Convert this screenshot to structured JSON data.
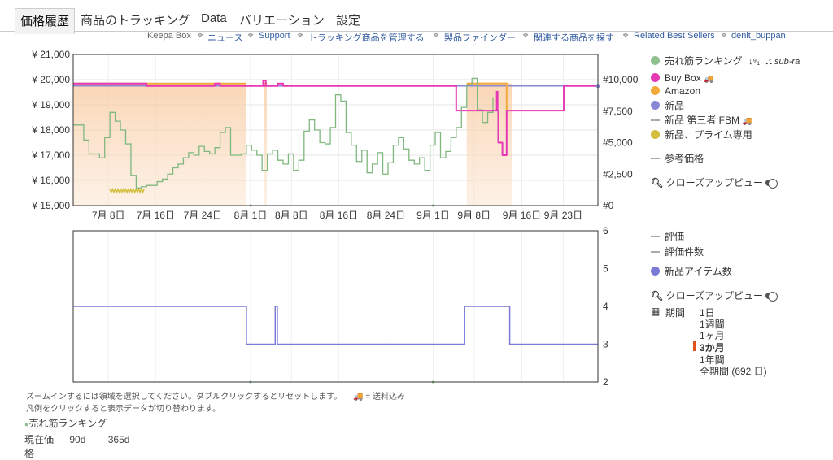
{
  "tabs": [
    {
      "label": "価格履歴",
      "active": true
    },
    {
      "label": "商品のトラッキング"
    },
    {
      "label": "Data"
    },
    {
      "label": "バリエーション"
    },
    {
      "label": "設定"
    }
  ],
  "subnav": {
    "brand": "Keepa Box",
    "links": [
      "ニュース",
      "Support",
      "トラッキング商品を管理する",
      "製品ファインダー",
      "関連する商品を探す",
      "Related Best Sellers",
      "denit_buppan"
    ]
  },
  "chart_data": [
    {
      "type": "line",
      "title": "",
      "x_ticks": [
        "7月 8日",
        "7月 16日",
        "7月 24日",
        "8月 1日",
        "8月 8日",
        "8月 16日",
        "8月 24日",
        "9月 1日",
        "9月 8日",
        "9月 16日",
        "9月 23日"
      ],
      "y_left_ticks": [
        "¥ 21,000",
        "¥ 20,000",
        "¥ 19,000",
        "¥ 18,000",
        "¥ 17,000",
        "¥ 16,000",
        "¥ 15,000"
      ],
      "y_right_ticks": [
        "#10,000",
        "#7,500",
        "#5,000",
        "#2,500",
        "#0"
      ],
      "ylim_left": [
        15000,
        21000
      ],
      "ylim_right": [
        0,
        12000
      ],
      "series": [
        {
          "name": "売れ筋ランキング",
          "axis": "right",
          "color": "#7fb87f",
          "points": [
            [
              1,
              6400
            ],
            [
              2,
              5200
            ],
            [
              3,
              4100
            ],
            [
              4,
              4100
            ],
            [
              5,
              3800
            ],
            [
              6,
              5400
            ],
            [
              7,
              7400
            ],
            [
              8,
              6700
            ],
            [
              9,
              6000
            ],
            [
              10,
              4900
            ],
            [
              11,
              2400
            ],
            [
              12,
              1400
            ],
            [
              13,
              1500
            ],
            [
              14,
              1600
            ],
            [
              15,
              1600
            ],
            [
              16,
              1900
            ],
            [
              17,
              2100
            ],
            [
              18,
              2500
            ],
            [
              19,
              3000
            ],
            [
              20,
              3300
            ],
            [
              21,
              3800
            ],
            [
              22,
              4200
            ],
            [
              23,
              4000
            ],
            [
              24,
              4700
            ],
            [
              25,
              4300
            ],
            [
              26,
              4100
            ],
            [
              27,
              4600
            ],
            [
              28,
              5800
            ],
            [
              29,
              6200
            ],
            [
              30,
              4000
            ],
            [
              31,
              4000
            ],
            [
              32,
              4100
            ],
            [
              33,
              4800
            ],
            [
              34,
              4400
            ],
            [
              35,
              4000
            ],
            [
              36,
              2800
            ],
            [
              37,
              4100
            ],
            [
              38,
              4400
            ],
            [
              39,
              3600
            ],
            [
              40,
              3300
            ],
            [
              41,
              4100
            ],
            [
              42,
              2800
            ],
            [
              43,
              3600
            ],
            [
              44,
              5900
            ],
            [
              45,
              6800
            ],
            [
              46,
              6000
            ],
            [
              47,
              5000
            ],
            [
              48,
              4900
            ],
            [
              49,
              6200
            ],
            [
              50,
              8800
            ],
            [
              51,
              8300
            ],
            [
              52,
              5800
            ],
            [
              53,
              4800
            ],
            [
              54,
              3500
            ],
            [
              55,
              4400
            ],
            [
              56,
              2600
            ],
            [
              57,
              3300
            ],
            [
              58,
              4200
            ],
            [
              59,
              2500
            ],
            [
              60,
              3400
            ],
            [
              61,
              4800
            ],
            [
              62,
              5400
            ],
            [
              63,
              4500
            ],
            [
              64,
              3600
            ],
            [
              65,
              3300
            ],
            [
              66,
              3800
            ],
            [
              67,
              2800
            ],
            [
              68,
              4800
            ],
            [
              69,
              5800
            ],
            [
              70,
              3800
            ],
            [
              71,
              4300
            ],
            [
              72,
              5400
            ],
            [
              73,
              6200
            ],
            [
              74,
              7800
            ],
            [
              75,
              9600
            ],
            [
              76,
              10100
            ],
            [
              77,
              7600
            ],
            [
              78,
              6600
            ],
            [
              79,
              7400
            ],
            [
              80,
              8600
            ]
          ]
        },
        {
          "name": "Buy Box",
          "axis": "left",
          "color": "#e637b4",
          "points": [
            [
              0,
              19850
            ],
            [
              14,
              19850
            ],
            [
              14,
              19750
            ],
            [
              27,
              19750
            ],
            [
              27,
              19850
            ],
            [
              28,
              19850
            ],
            [
              28,
              19750
            ],
            [
              39,
              19750
            ],
            [
              39,
              19850
            ],
            [
              40,
              19850
            ],
            [
              40,
              19750
            ],
            [
              73,
              19750
            ],
            [
              73,
              18770
            ],
            [
              81,
              18770
            ],
            [
              81,
              17500
            ],
            [
              81.8,
              17500
            ],
            [
              81.8,
              17000
            ],
            [
              82.6,
              17000
            ],
            [
              82.6,
              18770
            ],
            [
              93.5,
              18770
            ],
            [
              93.5,
              19750
            ],
            [
              100,
              19750
            ]
          ]
        },
        {
          "name": "Amazon",
          "axis": "left",
          "color": "#f3a93a",
          "points": [
            [
              0,
              19850
            ],
            [
              33,
              19850
            ]
          ]
        },
        {
          "name": "新品",
          "axis": "left",
          "color": "#8a87d6",
          "points": [
            [
              0,
              19750
            ],
            [
              100,
              19750
            ]
          ]
        },
        {
          "name": "新品、プライム専用",
          "axis": "left",
          "color": "#d3bf3d",
          "points": [
            [
              7,
              15650
            ],
            [
              13.5,
              15650
            ]
          ]
        }
      ]
    },
    {
      "type": "line",
      "title": "",
      "y_right_ticks": [
        "6",
        "5",
        "4",
        "3",
        "2"
      ],
      "ylim_right": [
        2,
        6
      ],
      "series": [
        {
          "name": "新品アイテム数",
          "color": "#7b7bd6",
          "points": [
            [
              0,
              4
            ],
            [
              33,
              4
            ],
            [
              33,
              3
            ],
            [
              38.5,
              3
            ],
            [
              38.5,
              4
            ],
            [
              38.9,
              4
            ],
            [
              38.9,
              3
            ],
            [
              74.6,
              3
            ],
            [
              74.6,
              4
            ],
            [
              83.2,
              4
            ],
            [
              83.2,
              3
            ],
            [
              100,
              3
            ]
          ]
        }
      ]
    }
  ],
  "legend_top": [
    {
      "label": "売れ筋ランキング",
      "type": "dot",
      "color": "#8fc08f"
    },
    {
      "label": "sub-ra"
    },
    {
      "label": "Buy Box",
      "type": "dot",
      "color": "#e637b4",
      "truck": "🚚"
    },
    {
      "label": "Amazon",
      "type": "dot",
      "color": "#f3a93a"
    },
    {
      "label": "新品",
      "type": "dot",
      "color": "#8a87d6"
    },
    {
      "label": "新品 第三者 FBM",
      "type": "dash",
      "truck": "🚚"
    },
    {
      "label": "新品、プライム専用",
      "type": "dot",
      "color": "#d3bf3d"
    },
    {
      "label": "参考価格",
      "type": "dash"
    }
  ],
  "closeup_label": "クローズアップビュー",
  "legend_bottom": [
    {
      "label": "評価",
      "type": "dash"
    },
    {
      "label": "評価件数",
      "type": "dash"
    },
    {
      "label": "新品アイテム数",
      "type": "dot",
      "color": "#7b7bd6"
    }
  ],
  "period": {
    "label": "期間",
    "options": [
      "1日",
      "1週間",
      "1ヶ月",
      "3か月",
      "1年間",
      "全期間 (692 日)"
    ],
    "active": "3か月"
  },
  "footer": {
    "line1": "ズームインするには領域を選択してください。ダブルクリックするとリセットします。",
    "truck_note": "🚚 = 送料込み",
    "line2": "凡例をクリックすると表示データが切り替わります。",
    "rank_label": "売れ筋ランキング",
    "stats_labels": [
      "現在価",
      "90d",
      "365d"
    ],
    "cut_text": "格"
  }
}
